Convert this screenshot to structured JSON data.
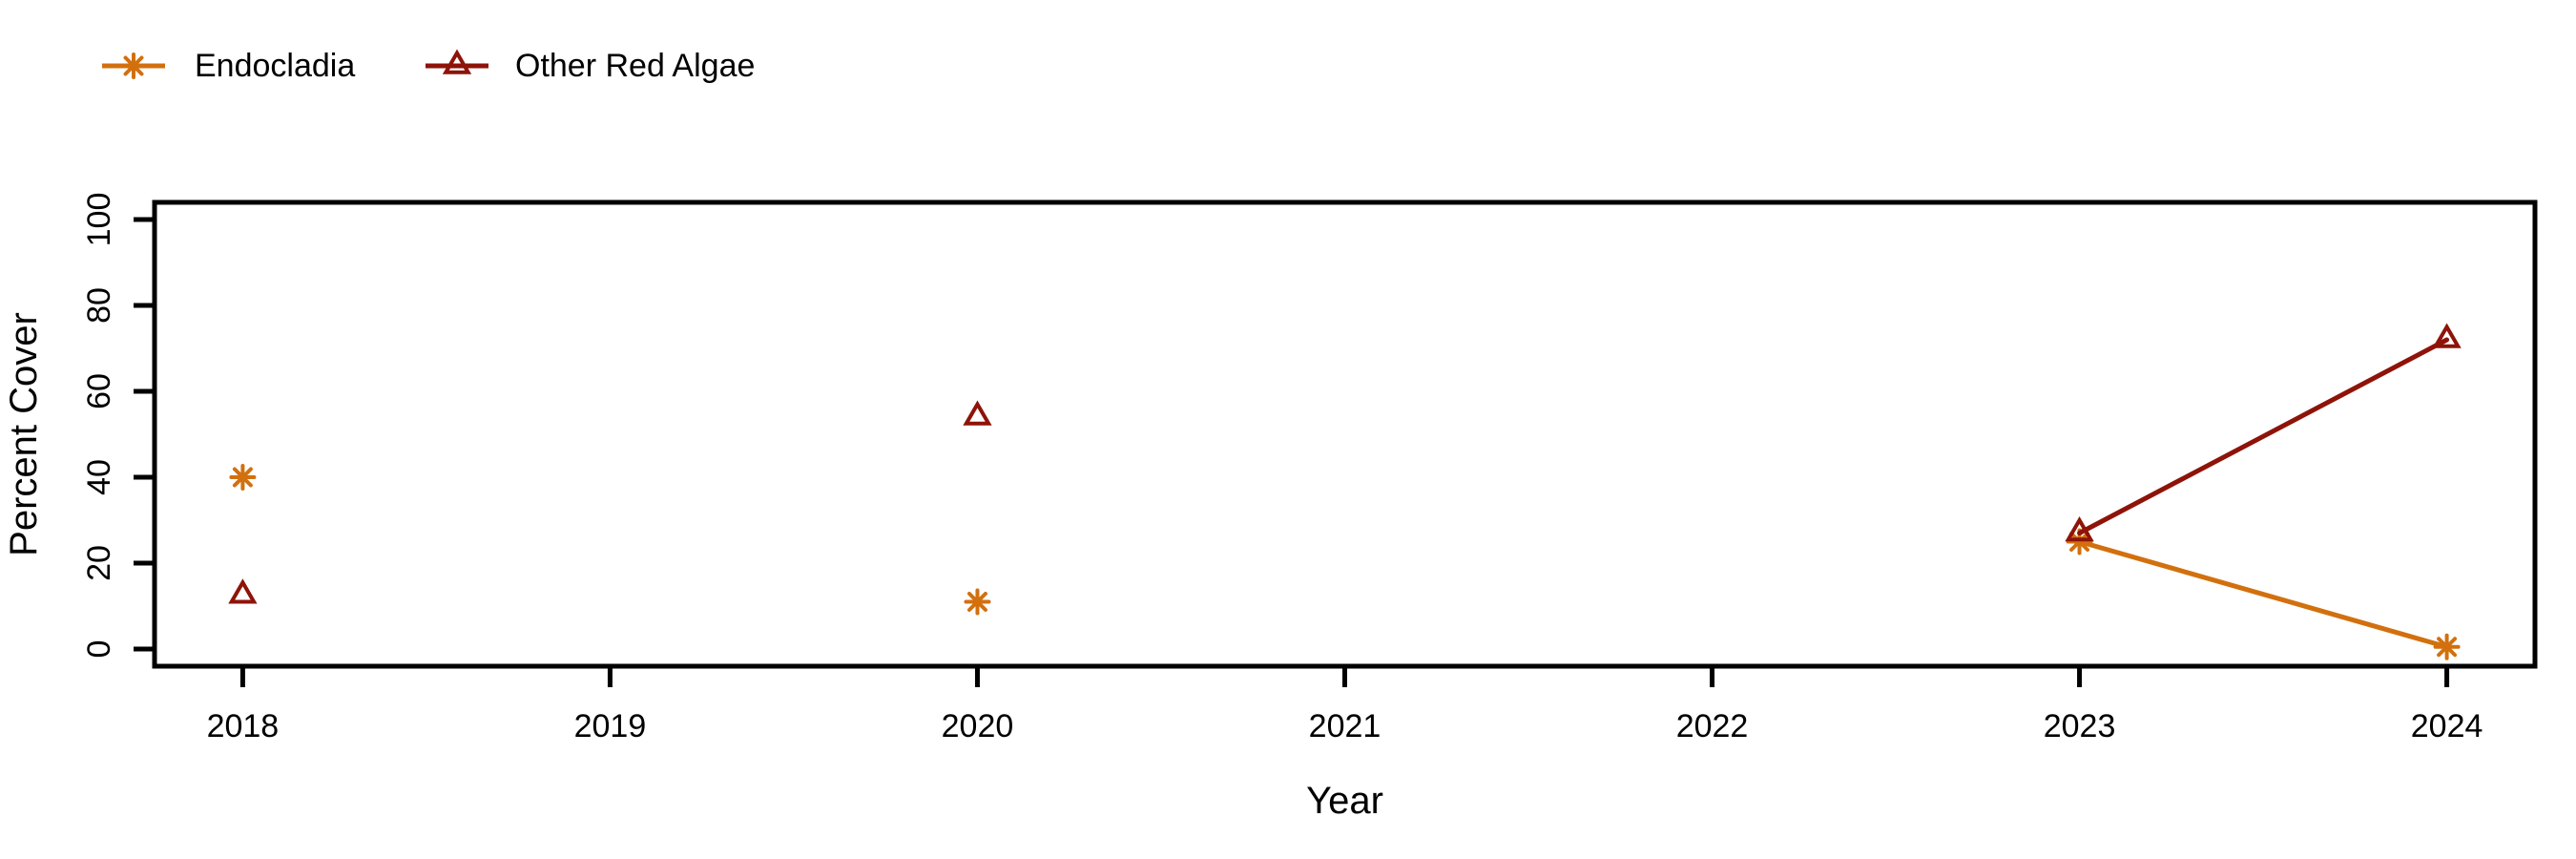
{
  "colors": {
    "background": "#FFFFFF",
    "axis": "#000000",
    "text": "#000000"
  },
  "chart_data": {
    "type": "line",
    "title": "",
    "xlabel": "Year",
    "ylabel": "Percent Cover",
    "xlim": [
      2017.76,
      2024.24
    ],
    "ylim": [
      -4,
      104
    ],
    "x_ticks": [
      2018,
      2019,
      2020,
      2021,
      2022,
      2023,
      2024
    ],
    "y_ticks": [
      0,
      20,
      40,
      60,
      80,
      100
    ],
    "grid": false,
    "legend_position": "top-left",
    "line_rule": "segments connect only consecutive calendar years",
    "series": [
      {
        "name": "Endocladia",
        "color": "#D2700E",
        "marker": "asterisk",
        "x": [
          2018,
          2020,
          2023,
          2024
        ],
        "y": [
          40,
          11,
          25,
          0.5
        ]
      },
      {
        "name": "Other Red Algae",
        "color": "#8E1309",
        "marker": "triangle-open",
        "x": [
          2018,
          2020,
          2023,
          2024
        ],
        "y": [
          12.5,
          54,
          27,
          72
        ]
      }
    ]
  }
}
